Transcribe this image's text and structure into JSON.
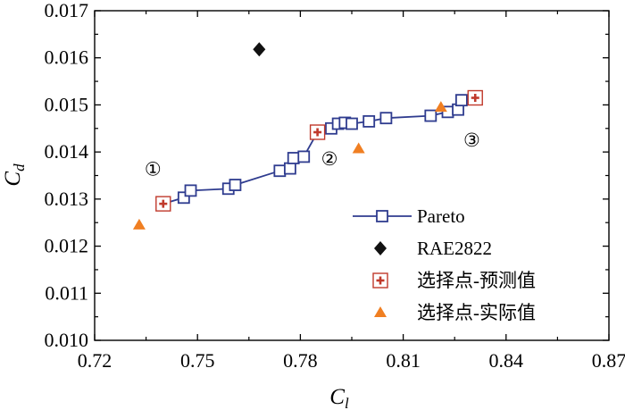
{
  "chart_data": {
    "type": "scatter",
    "xlabel_main": "C",
    "xlabel_sub": "l",
    "ylabel_main": "C",
    "ylabel_sub": "d",
    "xlim": [
      0.72,
      0.87
    ],
    "ylim": [
      0.01,
      0.017
    ],
    "x_ticks": [
      "0.72",
      "0.75",
      "0.78",
      "0.81",
      "0.84",
      "0.87"
    ],
    "y_ticks": [
      "0.010",
      "0.011",
      "0.012",
      "0.013",
      "0.014",
      "0.015",
      "0.016",
      "0.017"
    ],
    "grid": false,
    "legend_position": "bottom-right",
    "series": [
      {
        "name": "Pareto",
        "style": "line-open-square",
        "color": "#2f3c8f",
        "points": [
          [
            0.74,
            0.0129
          ],
          [
            0.746,
            0.01303
          ],
          [
            0.748,
            0.01318
          ],
          [
            0.759,
            0.01322
          ],
          [
            0.761,
            0.0133
          ],
          [
            0.774,
            0.0136
          ],
          [
            0.777,
            0.01365
          ],
          [
            0.778,
            0.01387
          ],
          [
            0.781,
            0.0139
          ],
          [
            0.785,
            0.01442
          ],
          [
            0.789,
            0.0145
          ],
          [
            0.791,
            0.0146
          ],
          [
            0.793,
            0.01462
          ],
          [
            0.795,
            0.0146
          ],
          [
            0.8,
            0.01465
          ],
          [
            0.805,
            0.01472
          ],
          [
            0.818,
            0.01477
          ],
          [
            0.823,
            0.01485
          ],
          [
            0.826,
            0.0149
          ],
          [
            0.827,
            0.0151
          ],
          [
            0.831,
            0.01515
          ]
        ]
      },
      {
        "name": "RAE2822",
        "style": "filled-diamond",
        "color": "#111111",
        "points": [
          [
            0.768,
            0.01618
          ]
        ]
      },
      {
        "name": "选择点-预测值",
        "style": "boxed-plus",
        "color": "#c0392b",
        "points": [
          [
            0.74,
            0.0129
          ],
          [
            0.785,
            0.01442
          ],
          [
            0.831,
            0.01515
          ]
        ]
      },
      {
        "name": "选择点-实际值",
        "style": "filled-triangle",
        "color": "#f07f22",
        "points": [
          [
            0.733,
            0.01245
          ],
          [
            0.797,
            0.01407
          ],
          [
            0.821,
            0.01495
          ]
        ]
      }
    ],
    "annotations": [
      {
        "text": "①",
        "x": 0.737,
        "y": 0.0135
      },
      {
        "text": "②",
        "x": 0.7885,
        "y": 0.01372
      },
      {
        "text": "③",
        "x": 0.83,
        "y": 0.01412
      }
    ]
  }
}
